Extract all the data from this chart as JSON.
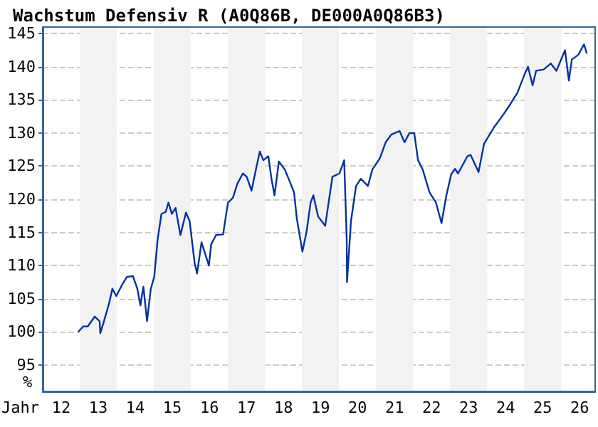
{
  "chart_data": {
    "type": "line",
    "title": "Wachstum Defensiv R (A0Q86B, DE000A0Q86B3)",
    "xlabel": "Jahr",
    "ylabel": "%",
    "series": [
      {
        "color": "#0033a0",
        "x": [
          "2012-12-16",
          "2013-02-03",
          "2013-03-20",
          "2013-05-28",
          "2013-07-15",
          "2013-07-22",
          "2013-08-21",
          "2013-10-15",
          "2013-11-18",
          "2013-12-27",
          "2014-02-25",
          "2014-04-12",
          "2014-06-09",
          "2014-07-22",
          "2014-08-21",
          "2014-09-20",
          "2014-10-26",
          "2014-12-02",
          "2015-01-05",
          "2015-02-07",
          "2015-03-17",
          "2015-04-28",
          "2015-05-25",
          "2015-06-27",
          "2015-08-03",
          "2015-09-20",
          "2015-11-14",
          "2015-12-20",
          "2016-02-07",
          "2016-03-02",
          "2016-04-15",
          "2016-06-27",
          "2016-07-19",
          "2016-09-06",
          "2016-11-14",
          "2017-01-01",
          "2017-02-18",
          "2017-04-05",
          "2017-05-28",
          "2017-07-05",
          "2017-08-21",
          "2017-10-08",
          "2017-11-11",
          "2017-12-16",
          "2018-02-03",
          "2018-03-06",
          "2018-04-05",
          "2018-05-18",
          "2018-07-15",
          "2018-09-02",
          "2018-10-15",
          "2018-11-11",
          "2019-01-05",
          "2019-02-14",
          "2019-03-27",
          "2019-04-23",
          "2019-06-09",
          "2019-08-18",
          "2019-10-28",
          "2020-01-05",
          "2020-02-21",
          "2020-03-17",
          "2020-03-20",
          "2020-04-28",
          "2020-06-17",
          "2020-08-03",
          "2020-10-12",
          "2020-11-25",
          "2021-02-07",
          "2021-04-05",
          "2021-06-02",
          "2021-08-21",
          "2021-10-08",
          "2021-11-25",
          "2022-01-12",
          "2022-02-18",
          "2022-04-05",
          "2022-06-13",
          "2022-08-14",
          "2022-10-08",
          "2022-11-25",
          "2023-01-12",
          "2023-02-18",
          "2023-03-20",
          "2023-06-20",
          "2023-07-22",
          "2023-10-08",
          "2023-12-02",
          "2024-03-06",
          "2024-06-09",
          "2024-08-18",
          "2024-10-26",
          "2025-01-05",
          "2025-02-07",
          "2025-03-24",
          "2025-04-28",
          "2025-07-12",
          "2025-09-20",
          "2025-11-14",
          "2025-12-20",
          "2026-02-07",
          "2026-03-17",
          "2026-04-15",
          "2026-06-17",
          "2026-08-14",
          "2026-09-09"
        ],
        "values": [
          100.0,
          100.8,
          100.8,
          102.3,
          101.6,
          99.8,
          101.3,
          104.2,
          106.5,
          105.4,
          107.2,
          108.3,
          108.4,
          106.5,
          104.0,
          106.8,
          101.6,
          106.5,
          108.3,
          113.9,
          117.8,
          118.1,
          119.5,
          117.8,
          118.7,
          114.6,
          118.0,
          116.7,
          110.4,
          108.8,
          113.5,
          110.0,
          113.2,
          114.6,
          114.7,
          119.5,
          120.2,
          122.4,
          123.9,
          123.4,
          121.3,
          124.8,
          127.2,
          125.9,
          126.5,
          123.1,
          120.6,
          125.7,
          124.5,
          122.7,
          121.0,
          117.1,
          112.1,
          115.0,
          119.5,
          120.6,
          117.4,
          116.0,
          123.4,
          123.9,
          125.9,
          113.9,
          107.5,
          116.7,
          122.0,
          123.1,
          122.0,
          124.5,
          126.2,
          128.6,
          129.8,
          130.3,
          128.6,
          130.0,
          130.0,
          125.9,
          124.5,
          121.0,
          119.5,
          116.4,
          120.6,
          123.8,
          124.6,
          123.9,
          126.5,
          126.7,
          124.1,
          128.4,
          130.8,
          132.8,
          134.4,
          136.1,
          138.9,
          140.0,
          137.2,
          139.4,
          139.6,
          140.5,
          139.4,
          140.7,
          142.5,
          137.9,
          141.1,
          141.8,
          143.4,
          142.0
        ]
      }
    ],
    "xlim": [
      "2012-01-01",
      "2026-12-01"
    ],
    "xticks": [
      {
        "value": "2012-07-02",
        "label": "12"
      },
      {
        "value": "2013-07-02",
        "label": "13"
      },
      {
        "value": "2014-07-02",
        "label": "14"
      },
      {
        "value": "2015-07-02",
        "label": "15"
      },
      {
        "value": "2016-07-02",
        "label": "16"
      },
      {
        "value": "2017-07-02",
        "label": "17"
      },
      {
        "value": "2018-07-02",
        "label": "18"
      },
      {
        "value": "2019-07-02",
        "label": "19"
      },
      {
        "value": "2020-07-02",
        "label": "20"
      },
      {
        "value": "2021-07-02",
        "label": "21"
      },
      {
        "value": "2022-07-02",
        "label": "22"
      },
      {
        "value": "2023-07-02",
        "label": "23"
      },
      {
        "value": "2024-07-02",
        "label": "24"
      },
      {
        "value": "2025-07-02",
        "label": "25"
      },
      {
        "value": "2026-07-02",
        "label": "26"
      }
    ],
    "ylim": [
      91,
      146
    ],
    "yticks": [
      95,
      100,
      105,
      110,
      115,
      120,
      125,
      130,
      135,
      140,
      145
    ],
    "bands": [
      {
        "axis": "x",
        "from": "2013-01-01",
        "to": "2014-01-01",
        "color": "#f2f2f2"
      },
      {
        "axis": "x",
        "from": "2015-01-01",
        "to": "2016-01-01",
        "color": "#f2f2f2"
      },
      {
        "axis": "x",
        "from": "2017-01-01",
        "to": "2018-01-01",
        "color": "#f2f2f2"
      },
      {
        "axis": "x",
        "from": "2019-01-01",
        "to": "2020-01-01",
        "color": "#f2f2f2"
      },
      {
        "axis": "x",
        "from": "2021-01-01",
        "to": "2022-01-01",
        "color": "#f2f2f2"
      },
      {
        "axis": "x",
        "from": "2023-01-01",
        "to": "2024-01-01",
        "color": "#f2f2f2"
      },
      {
        "axis": "x",
        "from": "2025-01-01",
        "to": "2026-01-01",
        "color": "#f2f2f2"
      }
    ],
    "grid": "y",
    "marker": "none",
    "line_style": "solid"
  }
}
